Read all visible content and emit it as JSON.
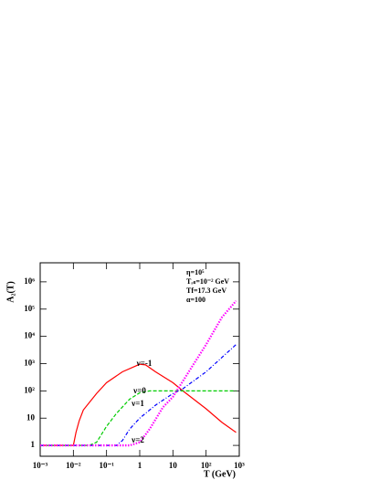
{
  "chart_data": {
    "type": "line",
    "xlabel": "T (GeV)",
    "ylabel": "A₂(T)",
    "xscale": "log",
    "yscale": "log",
    "xlim": [
      0.001,
      1000
    ],
    "ylim": [
      0.4,
      5000000
    ],
    "xticks": [
      {
        "value": 0.001,
        "label": "10⁻³"
      },
      {
        "value": 0.01,
        "label": "10⁻²"
      },
      {
        "value": 0.1,
        "label": "10⁻¹"
      },
      1,
      10,
      {
        "value": 100,
        "label": "10²"
      },
      {
        "value": 1000,
        "label": "10³"
      }
    ],
    "yticks": [
      1,
      10,
      {
        "value": 100,
        "label": "10²"
      },
      {
        "value": 1000,
        "label": "10³"
      },
      {
        "value": 10000,
        "label": "10⁴"
      },
      {
        "value": 100000,
        "label": "10⁵"
      },
      {
        "value": 1000000,
        "label": "10⁶"
      }
    ],
    "parameters": [
      "η=10⁵",
      "Tᵣₛ=10⁻² GeV",
      "Tf=17.3 GeV",
      "α=100"
    ],
    "series": [
      {
        "name": "ν=-1",
        "color": "#ff0000",
        "dash": "solid",
        "x": [
          0.001,
          0.01,
          0.012,
          0.015,
          0.02,
          0.05,
          0.1,
          0.3,
          1,
          1.5,
          3,
          10,
          20,
          100,
          300,
          800
        ],
        "values": [
          1,
          1,
          3,
          8,
          20,
          80,
          200,
          500,
          950,
          900,
          500,
          200,
          100,
          22,
          7,
          3
        ]
      },
      {
        "name": "ν=0",
        "color": "#00cc00",
        "dash": "dashed",
        "x": [
          0.001,
          0.03,
          0.05,
          0.1,
          0.2,
          0.5,
          1,
          2,
          10,
          800
        ],
        "values": [
          1,
          1,
          1.3,
          5,
          15,
          50,
          85,
          100,
          100,
          100
        ]
      },
      {
        "name": "ν=1",
        "color": "#0000ff",
        "dash": "dashdot",
        "x": [
          0.001,
          0.2,
          0.3,
          0.5,
          1,
          3,
          10,
          20,
          100,
          800
        ],
        "values": [
          1,
          1,
          1.5,
          4,
          10,
          30,
          80,
          120,
          500,
          5000
        ]
      },
      {
        "name": "ν=2",
        "color": "#ff00ff",
        "dash": "dotted",
        "x": [
          0.001,
          0.5,
          1,
          2,
          5,
          10,
          30,
          100,
          300,
          800
        ],
        "values": [
          1,
          1,
          1.3,
          4,
          25,
          60,
          500,
          5000,
          50000,
          200000
        ]
      }
    ]
  }
}
